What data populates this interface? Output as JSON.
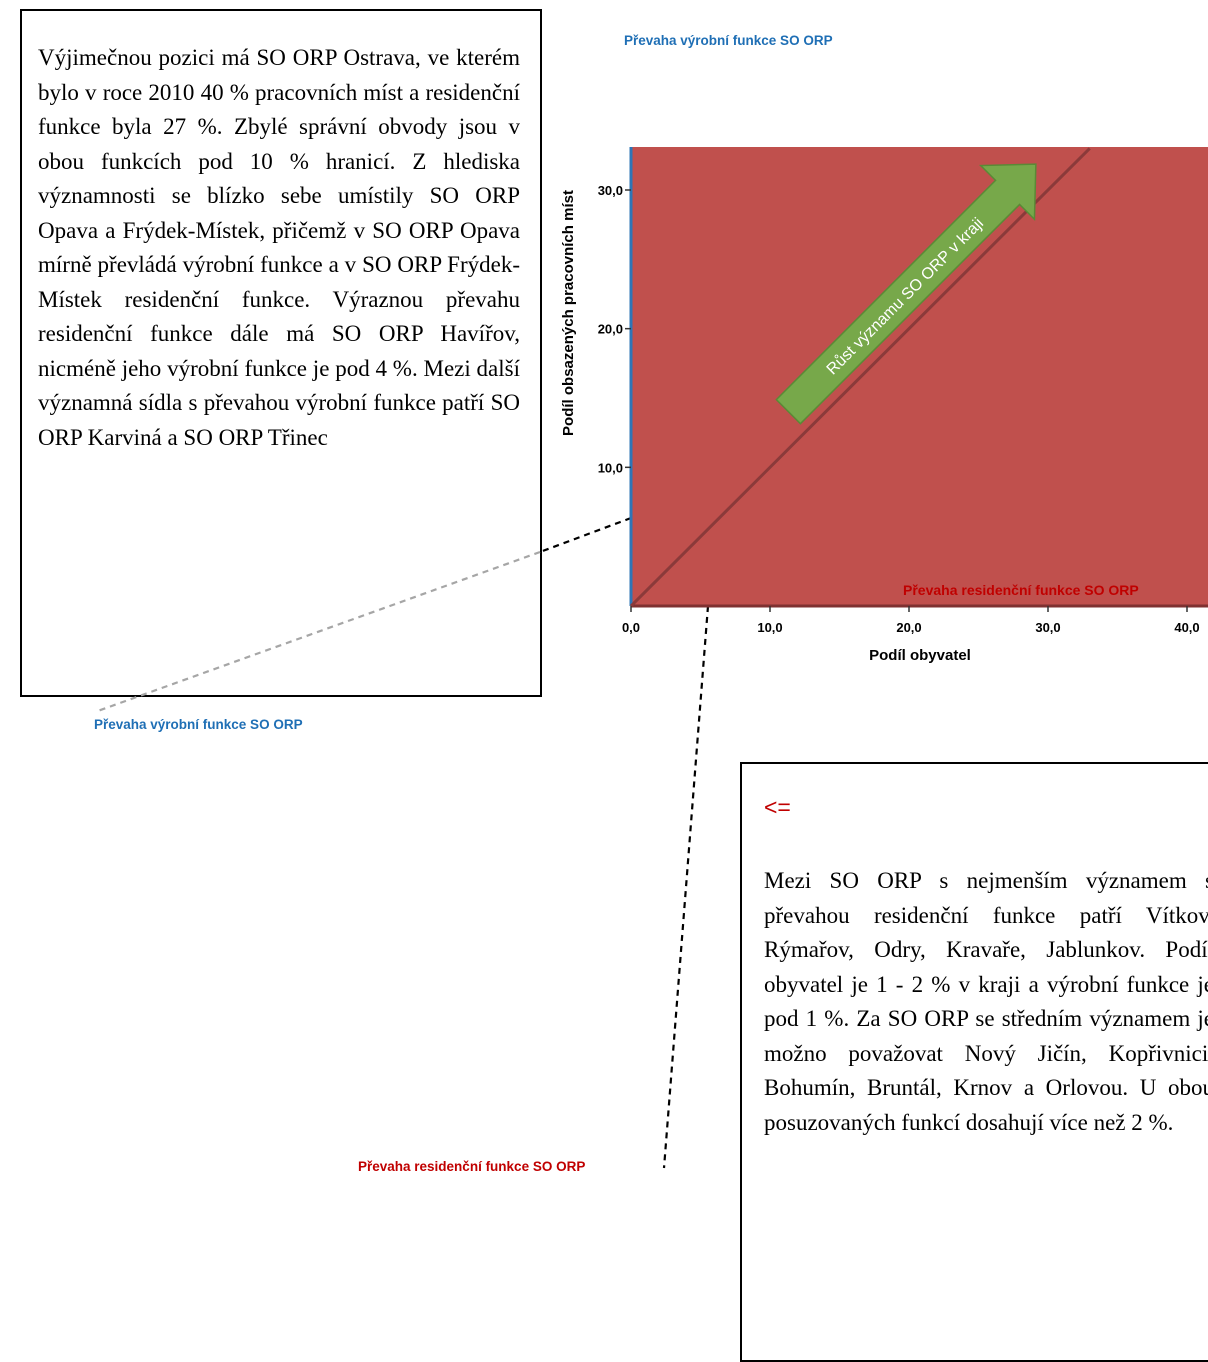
{
  "left_box": {
    "text": "Výjimečnou pozici má SO ORP Ostrava, ve kterém bylo v roce 2010 40 % pracovních míst a residenční funkce byla 27 %. Zbylé správní obvody jsou v obou funkcích pod 10 % hranicí. Z hlediska významnosti se blízko sebe umístily SO ORP Opava a Frýdek-Místek, přičemž v SO ORP Opava mírně převládá výrobní funkce a v SO ORP Frýdek-Místek residenční funkce. Výraznou převahu residenční funkce dále má SO ORP Havířov, nicméně jeho výrobní funkce je pod 4 %. Mezi další významná sídla s převahou výrobní funkce patří SO ORP Karviná a SO ORP Třinec"
  },
  "right_box": {
    "arrow_note": "<=",
    "text": "Mezi SO ORP s nejmenším významem s převahou residenční funkce patří Vítkov, Rýmařov, Odry, Kravaře, Jablunkov. Podíl obyvatel je 1 - 2 % v kraji a výrobní funkce je pod 1 %. Za SO ORP se středním významem je možno považovat Nový Jičín, Kopřivnici, Bohumín, Bruntál, Krnov a Orlovou. U obou posuzovaných funkcí dosahují více než 2 %."
  },
  "captions": {
    "top": "Převaha výrobní funkce SO ORP",
    "left": "Převaha výrobní funkce SO ORP",
    "bottom": "Převaha residenční funkce SO ORP"
  },
  "colors": {
    "plot_fill": "#c0504d",
    "diagonal": "#8b3a3a",
    "y_axis": "#2e75b6",
    "arrow_fill": "#77a84a",
    "arrow_text": "#ffffff",
    "caption_blue": "#1f6fb5",
    "caption_red": "#c00000"
  },
  "chart_data": {
    "type": "scatter",
    "xlabel": "Podíl obyvatel",
    "ylabel": "Podíl obsazených pracovních míst",
    "xlim": [
      0,
      42
    ],
    "ylim": [
      0,
      33
    ],
    "x_ticks": [
      0,
      10,
      20,
      30,
      40
    ],
    "y_ticks": [
      10,
      20,
      30
    ],
    "x_tick_labels": [
      "0,0",
      "10,0",
      "20,0",
      "30,0",
      "40,0"
    ],
    "y_tick_labels": [
      "10,0",
      "20,0",
      "30,0"
    ],
    "reference_line": {
      "x": [
        0,
        33
      ],
      "y": [
        0,
        33
      ]
    },
    "annotations": [
      {
        "text": "Růst významu SO ORP v kraji"
      },
      {
        "text": "Převaha residenční funkce SO ORP"
      }
    ],
    "grid": false,
    "legend": "none"
  }
}
